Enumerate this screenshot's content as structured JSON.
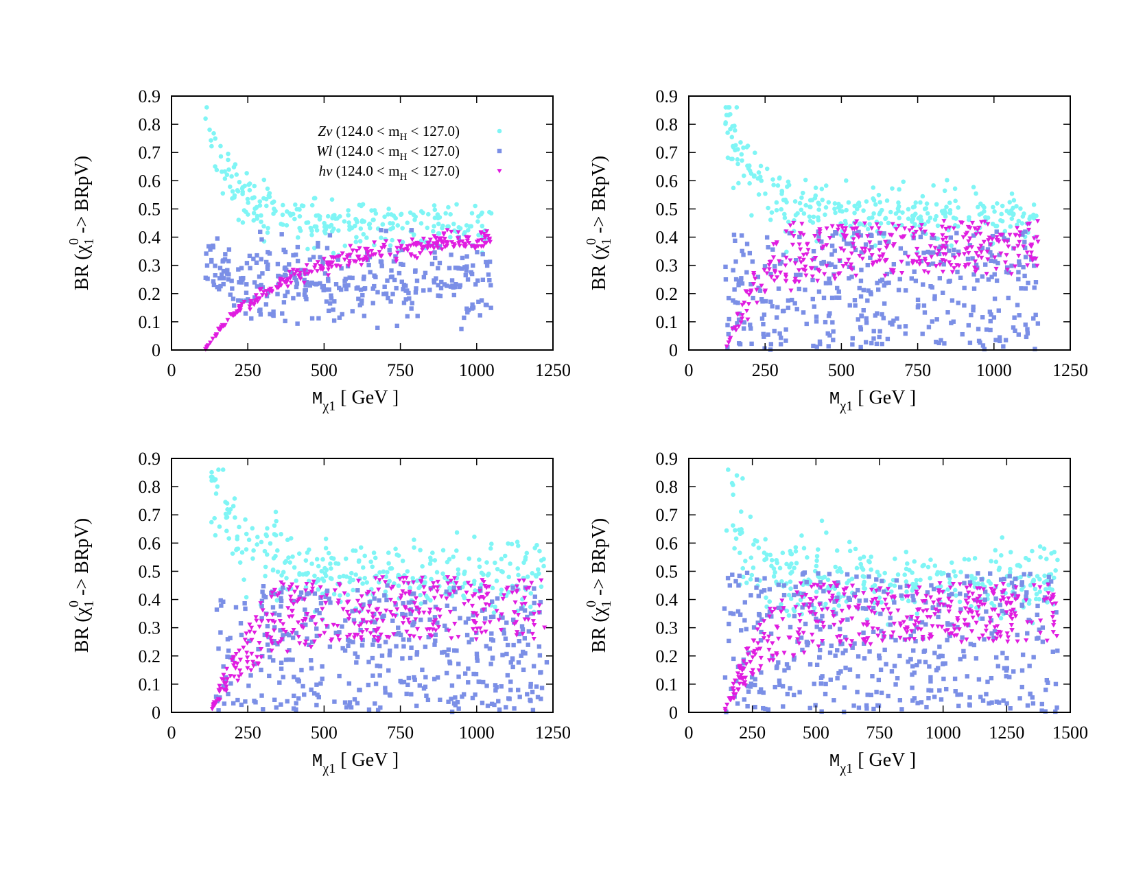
{
  "colors": {
    "zv": "#7ff5f5",
    "wl": "#7b8fe6",
    "hv": "#e01ce0"
  },
  "chart_data": [
    {
      "type": "scatter",
      "panel": "top-left",
      "xlim": [
        0,
        1250
      ],
      "ylim": [
        0,
        0.9
      ],
      "xticks": [
        "0",
        "250",
        "500",
        "750",
        "1000",
        "1250"
      ],
      "yticks": [
        "0",
        "0.1",
        "0.2",
        "0.3",
        "0.4",
        "0.5",
        "0.6",
        "0.7",
        "0.8",
        "0.9"
      ],
      "xlabel": {
        "m": "M",
        "sub": "χ1",
        "unit": "[ GeV ]"
      },
      "ylabel": {
        "pre": "BR (χ",
        "sup": "0",
        "sub": "1",
        "post": " -> BRpV)"
      },
      "legend": [
        {
          "name": "Zν",
          "cond_pre": "(124.0 < m",
          "cond_sub": "H",
          "cond_post": " < 127.0)",
          "marker": "circle",
          "color_key": "zv"
        },
        {
          "name": "Wl",
          "cond_pre": "(124.0 < m",
          "cond_sub": "H",
          "cond_post": " < 127.0)",
          "marker": "square",
          "color_key": "wl"
        },
        {
          "name": "hν",
          "cond_pre": "(124.0 < m",
          "cond_sub": "H",
          "cond_post": " < 127.0)",
          "marker": "triangle",
          "color_key": "hv"
        }
      ],
      "legend_position": "top-right",
      "xmin": 110,
      "xmax": 1050,
      "series": [
        {
          "name": "Zν",
          "color_key": "zv",
          "marker": "circle",
          "trend": "zv",
          "end_level": 0.44,
          "spread": 0.04,
          "n": 260
        },
        {
          "name": "Wl",
          "color_key": "wl",
          "marker": "square",
          "trend": "wl",
          "center": 0.24,
          "spread": 0.07,
          "n": 330
        },
        {
          "name": "hν",
          "color_key": "hv",
          "marker": "triangle",
          "trend": "hv",
          "plateau": 0.38,
          "ramp": 230,
          "spread": 0.02,
          "n": 280
        }
      ]
    },
    {
      "type": "scatter",
      "panel": "top-right",
      "xlim": [
        0,
        1250
      ],
      "ylim": [
        0,
        0.9
      ],
      "xticks": [
        "0",
        "250",
        "500",
        "750",
        "1000",
        "1250"
      ],
      "yticks": [
        "0",
        "0.1",
        "0.2",
        "0.3",
        "0.4",
        "0.5",
        "0.6",
        "0.7",
        "0.8",
        "0.9"
      ],
      "xlabel": {
        "m": "M",
        "sub": "χ1",
        "unit": "[ GeV ]"
      },
      "ylabel": {
        "pre": "BR (χ",
        "sup": "0",
        "sub": "1",
        "post": " -> BRpV)"
      },
      "xmin": 120,
      "xmax": 1145,
      "series": [
        {
          "name": "Zν",
          "color_key": "zv",
          "marker": "circle",
          "trend": "zv",
          "end_level": 0.48,
          "spread": 0.05,
          "n": 300
        },
        {
          "name": "Wl",
          "color_key": "wl",
          "marker": "square",
          "trend": "uniform",
          "low": 0.0,
          "high": 0.42,
          "n": 380
        },
        {
          "name": "hν",
          "color_key": "hv",
          "marker": "triangle",
          "trend": "band",
          "low": 0.27,
          "high": 0.46,
          "ramp": 230,
          "n": 340
        }
      ]
    },
    {
      "type": "scatter",
      "panel": "bottom-left",
      "xlim": [
        0,
        1250
      ],
      "ylim": [
        0,
        0.9
      ],
      "xticks": [
        "0",
        "250",
        "500",
        "750",
        "1000",
        "1250"
      ],
      "yticks": [
        "0",
        "0.1",
        "0.2",
        "0.3",
        "0.4",
        "0.5",
        "0.6",
        "0.7",
        "0.8",
        "0.9"
      ],
      "xlabel": {
        "m": "M",
        "sub": "χ1",
        "unit": "[ GeV ]"
      },
      "ylabel": {
        "pre": "BR (χ",
        "sup": "0",
        "sub": "1",
        "post": " -> BRpV)"
      },
      "xmin": 130,
      "xmax": 1230,
      "series": [
        {
          "name": "Zν",
          "color_key": "zv",
          "marker": "circle",
          "trend": "zv",
          "end_level": 0.48,
          "spread": 0.06,
          "n": 320
        },
        {
          "name": "Wl",
          "color_key": "wl",
          "marker": "square",
          "trend": "uniform",
          "low": 0.0,
          "high": 0.45,
          "n": 420
        },
        {
          "name": "hν",
          "color_key": "hv",
          "marker": "triangle",
          "trend": "band",
          "low": 0.26,
          "high": 0.48,
          "ramp": 250,
          "n": 380
        }
      ]
    },
    {
      "type": "scatter",
      "panel": "bottom-right",
      "xlim": [
        0,
        1500
      ],
      "ylim": [
        0,
        0.9
      ],
      "xticks": [
        "0",
        "250",
        "500",
        "750",
        "1000",
        "1250",
        "1500"
      ],
      "yticks": [
        "0",
        "0.1",
        "0.2",
        "0.3",
        "0.4",
        "0.5",
        "0.6",
        "0.7",
        "0.8",
        "0.9"
      ],
      "xlabel": {
        "m": "M",
        "sub": "χ1",
        "unit": "[ GeV ]"
      },
      "ylabel": {
        "pre": "BR (χ",
        "sup": "0",
        "sub": "1",
        "post": " -> BRpV)"
      },
      "xmin": 140,
      "xmax": 1450,
      "series": [
        {
          "name": "Zν",
          "color_key": "zv",
          "marker": "circle",
          "trend": "zv",
          "end_level": 0.46,
          "spread": 0.06,
          "n": 320
        },
        {
          "name": "Wl",
          "color_key": "wl",
          "marker": "square",
          "trend": "uniform",
          "low": 0.0,
          "high": 0.5,
          "n": 420
        },
        {
          "name": "hν",
          "color_key": "hv",
          "marker": "triangle",
          "trend": "band",
          "low": 0.25,
          "high": 0.46,
          "ramp": 270,
          "n": 400
        }
      ]
    }
  ]
}
